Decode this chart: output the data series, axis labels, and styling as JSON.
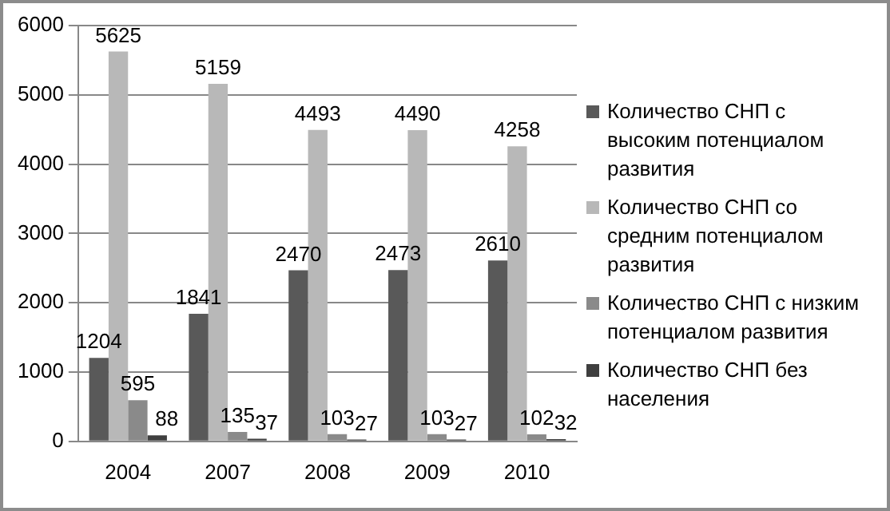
{
  "chart_data": {
    "type": "bar",
    "categories": [
      "2004",
      "2007",
      "2008",
      "2009",
      "2010"
    ],
    "series": [
      {
        "name": "Количество СНП с высоким потенциалом развития",
        "color": "#595959",
        "values": [
          1204,
          1841,
          2470,
          2473,
          2610
        ]
      },
      {
        "name": "Количество СНП со средним потенциалом развития",
        "color": "#b8b8b8",
        "values": [
          5625,
          5159,
          4493,
          4490,
          4258
        ]
      },
      {
        "name": "Количество СНП с низким потенциалом развития",
        "color": "#8a8a8a",
        "values": [
          595,
          135,
          103,
          103,
          102
        ]
      },
      {
        "name": "Количество СНП без населения",
        "color": "#3f3f3f",
        "values": [
          88,
          37,
          27,
          27,
          32
        ]
      }
    ],
    "ylim": [
      0,
      6000
    ],
    "yticks": [
      0,
      1000,
      2000,
      3000,
      4000,
      5000,
      6000
    ],
    "grid": "y",
    "legend": "right",
    "data_labels": true
  }
}
